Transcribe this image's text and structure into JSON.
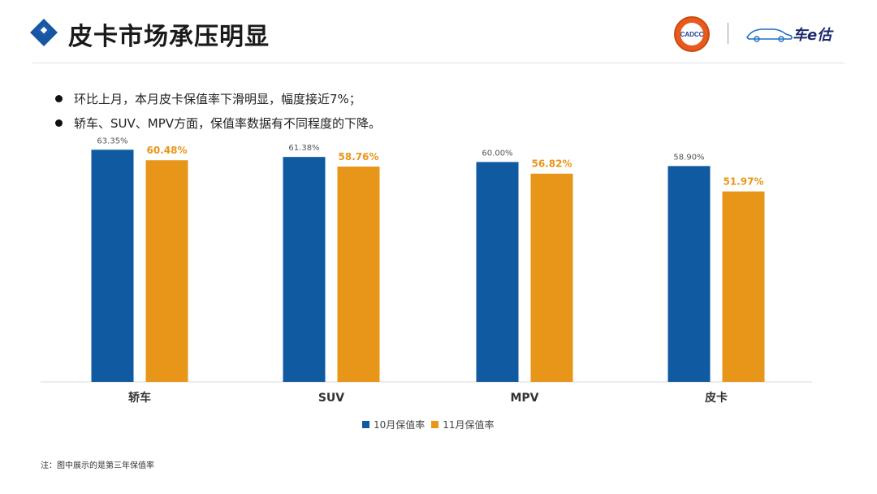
{
  "header": {
    "title": "皮卡市场承压明显",
    "logo_text": "CADCC",
    "brand_text": "车e估"
  },
  "bullets": [
    "环比上月，本月皮卡保值率下滑明显，幅度接近7%；",
    "轿车、SUV、MPV方面，保值率数据有不同程度的下降。"
  ],
  "colors": {
    "oct": "#0f5aa0",
    "nov": "#e8961a",
    "accent": "#1656a3"
  },
  "chart_data": {
    "type": "bar",
    "categories": [
      "轿车",
      "SUV",
      "MPV",
      "皮卡"
    ],
    "series": [
      {
        "name": "10月保值率",
        "values": [
          63.35,
          61.38,
          60.0,
          58.9
        ],
        "labels": [
          "63.35%",
          "61.38%",
          "60.00%",
          "58.90%"
        ]
      },
      {
        "name": "11月保值率",
        "values": [
          60.48,
          58.76,
          56.82,
          51.97
        ],
        "labels": [
          "60.48%",
          "58.76%",
          "56.82%",
          "51.97%"
        ]
      }
    ],
    "ylim": [
      0,
      70
    ],
    "legend": "bottom",
    "grid": false
  },
  "footnote": "注：图中展示的是第三年保值率"
}
